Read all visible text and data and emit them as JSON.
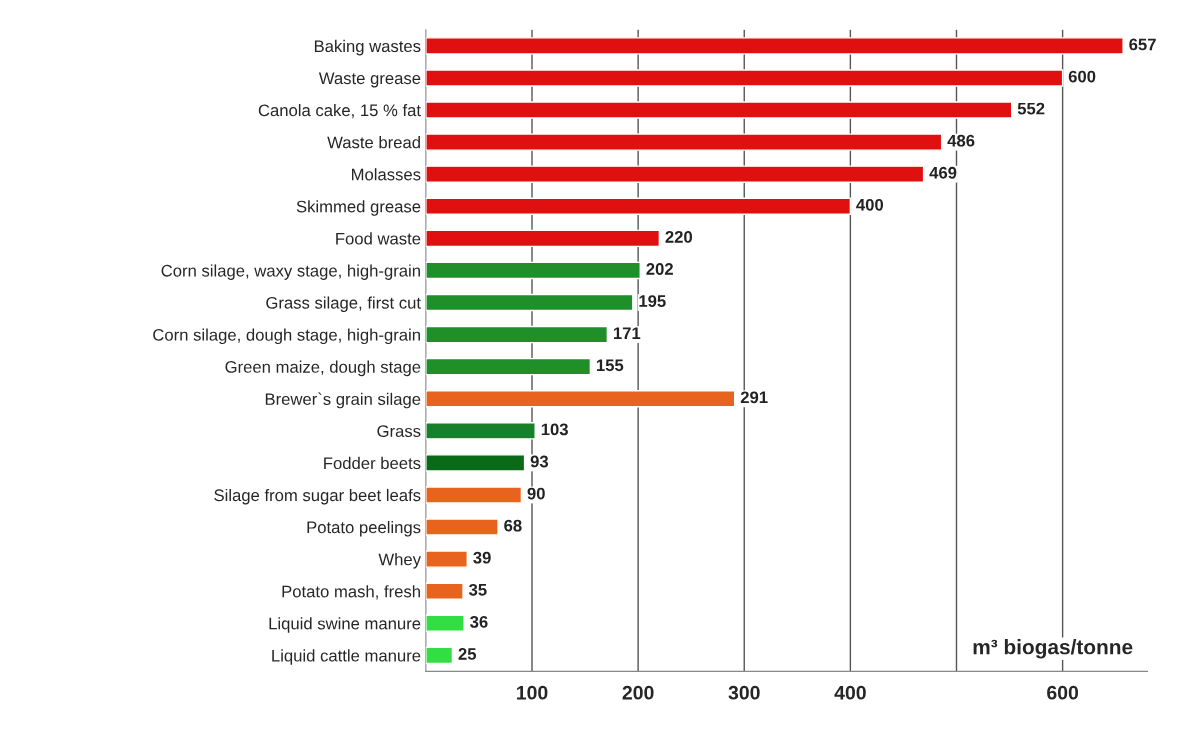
{
  "chart_data": {
    "type": "bar",
    "orientation": "horizontal",
    "xlabel": "m³ biogas/tonne",
    "categories": [
      "Baking wastes",
      "Waste grease",
      "Canola cake, 15 % fat",
      "Waste bread",
      "Molasses",
      "Skimmed grease",
      "Food waste",
      "Corn silage, waxy stage, high-grain",
      "Grass silage, first cut",
      "Corn silage, dough stage, high-grain",
      "Green maize, dough stage",
      "Brewer`s grain silage",
      "Grass",
      "Fodder beets",
      "Silage from sugar beet leafs",
      "Potato peelings",
      "Whey",
      "Potato mash, fresh",
      "Liquid swine manure",
      "Liquid cattle manure"
    ],
    "values": [
      657,
      600,
      552,
      486,
      469,
      400,
      220,
      202,
      195,
      171,
      155,
      291,
      103,
      93,
      90,
      68,
      39,
      35,
      36,
      25
    ],
    "value_labels": [
      "657",
      "600",
      "552",
      "486",
      "469",
      "400",
      "220",
      "202",
      "195",
      "171",
      "155",
      "291",
      "103",
      "93",
      "90",
      "68",
      "39",
      "35",
      "36",
      "25"
    ],
    "colors": [
      "#e01010",
      "#e01010",
      "#e01010",
      "#e01010",
      "#e01010",
      "#e01010",
      "#e01010",
      "#1f8f2a",
      "#1f8f2a",
      "#1f8f2a",
      "#1f8f2a",
      "#e8641e",
      "#17802a",
      "#0b6a18",
      "#e8641e",
      "#e8641e",
      "#e8641e",
      "#e8641e",
      "#33dd44",
      "#33dd44"
    ],
    "xlim": [
      0,
      680
    ],
    "xticks": [
      100,
      200,
      300,
      400,
      {
        "value": 500,
        "label": null
      },
      600
    ],
    "grid": "x"
  }
}
